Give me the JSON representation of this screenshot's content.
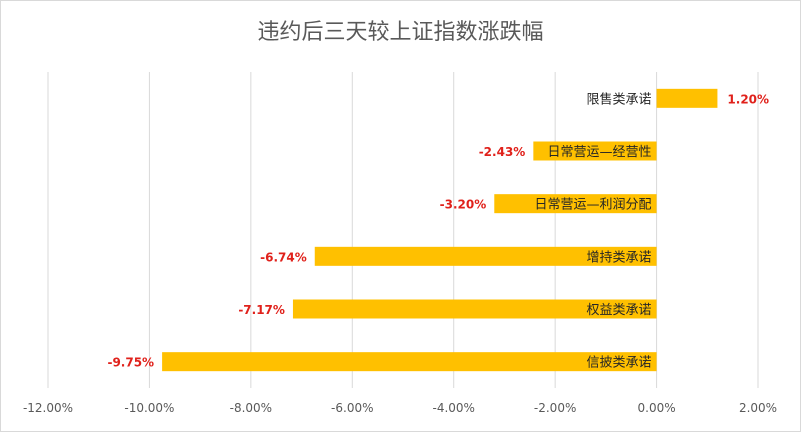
{
  "chart_data": {
    "type": "bar",
    "orientation": "horizontal",
    "title": "违约后三天较上证指数涨跌幅",
    "categories": [
      "限售类承诺",
      "日常营运—经营性",
      "日常营运—利润分配",
      "增持类承诺",
      "权益类承诺",
      "信披类承诺"
    ],
    "values": [
      1.2,
      -2.43,
      -3.2,
      -6.74,
      -7.17,
      -9.75
    ],
    "value_labels": [
      "1.20%",
      "-2.43%",
      "-3.20%",
      "-6.74%",
      "-7.17%",
      "-9.75%"
    ],
    "xlim": [
      -12,
      2
    ],
    "x_ticks": [
      -12,
      -10,
      -8,
      -6,
      -4,
      -2,
      0,
      2
    ],
    "x_tick_labels": [
      "-12.00%",
      "-10.00%",
      "-8.00%",
      "-6.00%",
      "-4.00%",
      "-2.00%",
      "0.00%",
      "2.00%"
    ],
    "grid": true,
    "bar_color": "#ffc000",
    "label_color": "#e0211b"
  }
}
